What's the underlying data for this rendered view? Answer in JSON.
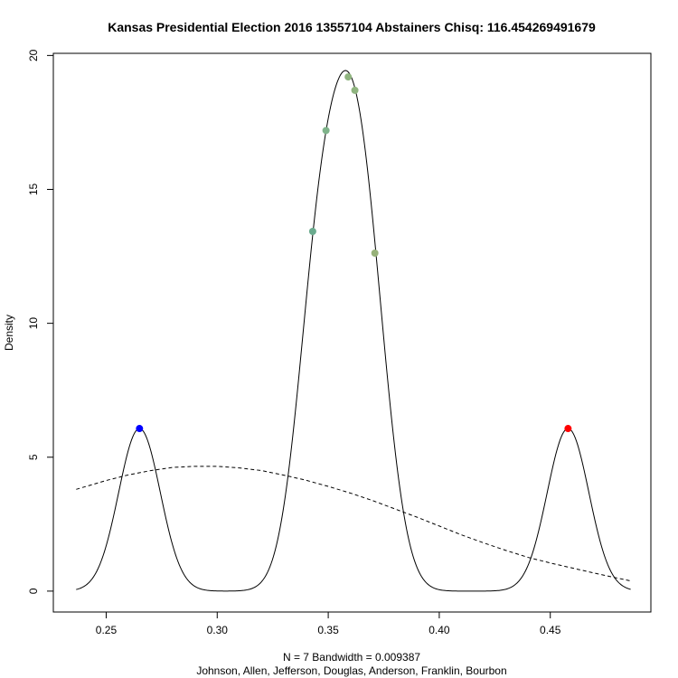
{
  "chart_data": {
    "type": "line",
    "title": "Kansas Presidential Election 2016 13557104 Abstainers Chisq: 116.454269491679",
    "xlabel_line1": "N = 7   Bandwidth = 0.009387",
    "xlabel_line2": "Johnson, Allen, Jefferson, Douglas, Anderson, Franklin, Bourbon",
    "ylabel": "Density",
    "xlim": [
      0.2262,
      0.4953
    ],
    "ylim": [
      -0.78,
      20.08
    ],
    "x_ticks": [
      0.25,
      0.3,
      0.35,
      0.4,
      0.45
    ],
    "x_tick_labels": [
      "0.25",
      "0.30",
      "0.35",
      "0.40",
      "0.45"
    ],
    "y_ticks": [
      0,
      5,
      10,
      15,
      20
    ],
    "y_tick_labels": [
      "0",
      "5",
      "10",
      "15",
      "20"
    ],
    "grid": false,
    "kde": {
      "bandwidth": 0.009387,
      "x_range": [
        0.2365,
        0.4862
      ]
    },
    "reference_curve": {
      "style": "dashed",
      "x": [
        0.2365,
        0.25,
        0.26,
        0.27,
        0.28,
        0.29,
        0.3,
        0.31,
        0.32,
        0.33,
        0.34,
        0.35,
        0.36,
        0.37,
        0.38,
        0.39,
        0.4,
        0.41,
        0.42,
        0.43,
        0.44,
        0.45,
        0.46,
        0.47,
        0.4862
      ],
      "y": [
        3.8,
        4.13,
        4.34,
        4.5,
        4.62,
        4.66,
        4.66,
        4.6,
        4.5,
        4.33,
        4.14,
        3.91,
        3.66,
        3.38,
        3.07,
        2.76,
        2.43,
        2.1,
        1.8,
        1.52,
        1.26,
        1.05,
        0.86,
        0.67,
        0.38
      ]
    },
    "points": [
      {
        "x": 0.265,
        "y": 6.07,
        "color": "#0000ff"
      },
      {
        "x": 0.343,
        "y": 13.43,
        "color": "#6aab8e"
      },
      {
        "x": 0.349,
        "y": 17.2,
        "color": "#7fb38a"
      },
      {
        "x": 0.359,
        "y": 19.2,
        "color": "#8fb47f"
      },
      {
        "x": 0.362,
        "y": 18.7,
        "color": "#8fb47f"
      },
      {
        "x": 0.371,
        "y": 12.62,
        "color": "#98b27a"
      },
      {
        "x": 0.458,
        "y": 6.07,
        "color": "#ff0000"
      }
    ]
  }
}
